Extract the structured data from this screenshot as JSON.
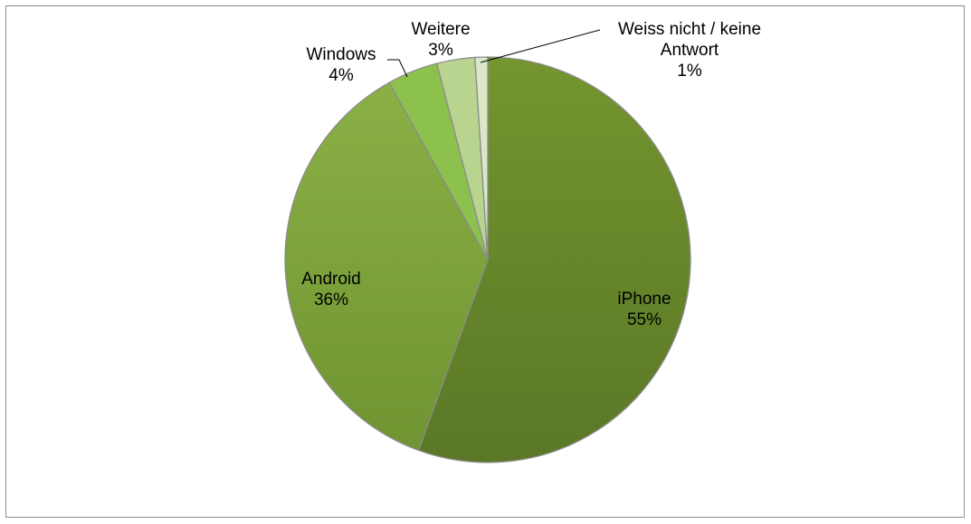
{
  "chart_data": {
    "type": "pie",
    "categories": [
      "iPhone",
      "Android",
      "Windows",
      "Weitere",
      "Weiss nicht / keine Antwort"
    ],
    "values": [
      55,
      36,
      4,
      3,
      1
    ],
    "percent_labels": [
      "55%",
      "36%",
      "4%",
      "3%",
      "1%"
    ],
    "title": "",
    "legend": "none",
    "data_labels": "category-and-percent",
    "colors": [
      "#6a8a2c",
      "#7fa33a",
      "#8cc14e",
      "#b8d48e",
      "#dbe8c8"
    ],
    "border_color": "#8c8c8c"
  }
}
